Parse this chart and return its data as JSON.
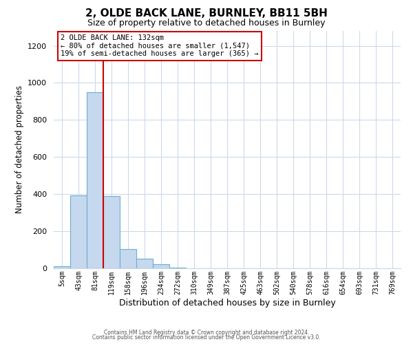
{
  "title": "2, OLDE BACK LANE, BURNLEY, BB11 5BH",
  "subtitle": "Size of property relative to detached houses in Burnley",
  "xlabel": "Distribution of detached houses by size in Burnley",
  "ylabel": "Number of detached properties",
  "bar_labels": [
    "5sqm",
    "43sqm",
    "81sqm",
    "119sqm",
    "158sqm",
    "196sqm",
    "234sqm",
    "272sqm",
    "310sqm",
    "349sqm",
    "387sqm",
    "425sqm",
    "463sqm",
    "502sqm",
    "540sqm",
    "578sqm",
    "616sqm",
    "654sqm",
    "693sqm",
    "731sqm",
    "769sqm"
  ],
  "bar_values": [
    10,
    395,
    950,
    390,
    105,
    53,
    22,
    5,
    0,
    0,
    0,
    0,
    0,
    0,
    0,
    0,
    0,
    0,
    0,
    0,
    0
  ],
  "bar_color": "#c5d8ed",
  "bar_edgecolor": "#6aaed6",
  "property_line_color": "#cc0000",
  "property_line_x": 2.5,
  "annotation_title": "2 OLDE BACK LANE: 132sqm",
  "annotation_line1": "← 80% of detached houses are smaller (1,547)",
  "annotation_line2": "19% of semi-detached houses are larger (365) →",
  "annotation_box_color": "#cc0000",
  "ylim": [
    0,
    1280
  ],
  "yticks": [
    0,
    200,
    400,
    600,
    800,
    1000,
    1200
  ],
  "footer1": "Contains HM Land Registry data © Crown copyright and database right 2024.",
  "footer2": "Contains public sector information licensed under the Open Government Licence v3.0.",
  "bg_color": "#ffffff",
  "grid_color": "#ccd9e8"
}
